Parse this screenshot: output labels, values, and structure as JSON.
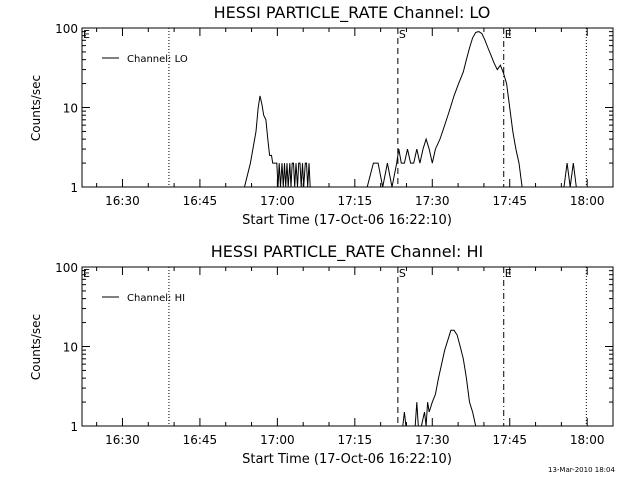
{
  "footer": {
    "timestamp": "13-Mar-2010 18:04"
  },
  "chart_data": [
    {
      "type": "line",
      "title": "HESSI PARTICLE_RATE Channel: LO",
      "xlabel": "Start Time (17-Oct-06 16:22:10)",
      "ylabel": "Counts/sec",
      "y_scale": "log",
      "ylim": [
        1,
        100
      ],
      "xlim": [
        16.3694,
        18.0833
      ],
      "x_ticks": [
        "16:30",
        "16:45",
        "17:00",
        "17:15",
        "17:30",
        "17:45",
        "18:00"
      ],
      "y_ticks": [
        "1",
        "10",
        "100"
      ],
      "legend": {
        "entries": [
          "Channel: LO"
        ],
        "placement": "top-left"
      },
      "markers": [
        {
          "x": 16.3694,
          "style": "dotted",
          "label": "E"
        },
        {
          "x": 16.65,
          "style": "dotted",
          "label": ""
        },
        {
          "x": 17.3889,
          "style": "dashed",
          "label": "S"
        },
        {
          "x": 17.7306,
          "style": "dash-dot",
          "label": "E"
        },
        {
          "x": 17.9972,
          "style": "dotted",
          "label": ""
        }
      ],
      "series": [
        {
          "name": "Channel: LO",
          "x": [
            16.894,
            16.913,
            16.931,
            16.938,
            16.944,
            16.95,
            16.956,
            16.963,
            16.969,
            16.975,
            16.981,
            16.985,
            16.99,
            16.994,
            16.998,
            17.002,
            17.006,
            17.01,
            17.015,
            17.019,
            17.023,
            17.027,
            17.031,
            17.035,
            17.04,
            17.044,
            17.048,
            17.052,
            17.056,
            17.06,
            17.065,
            17.069,
            17.073,
            17.077,
            17.081,
            17.085,
            17.09,
            17.094,
            17.098,
            17.102,
            17.106,
            17.29,
            17.31,
            17.325,
            17.34,
            17.355,
            17.37,
            17.385,
            17.392,
            17.4,
            17.41,
            17.42,
            17.43,
            17.44,
            17.45,
            17.46,
            17.47,
            17.48,
            17.49,
            17.5,
            17.51,
            17.525,
            17.54,
            17.555,
            17.57,
            17.585,
            17.6,
            17.61,
            17.62,
            17.63,
            17.64,
            17.65,
            17.66,
            17.67,
            17.68,
            17.69,
            17.7,
            17.71,
            17.72,
            17.73,
            17.74,
            17.75,
            17.76,
            17.77,
            17.78,
            17.79,
            17.8,
            17.925,
            17.935,
            17.945,
            17.955,
            17.965
          ],
          "y": [
            1,
            2,
            5,
            10,
            14,
            11,
            8,
            7,
            4,
            2.5,
            2.5,
            2,
            2,
            2,
            2,
            1,
            2,
            1,
            2,
            1,
            2,
            1,
            2,
            1,
            2,
            1,
            2,
            2,
            1,
            2,
            1,
            2,
            2,
            1,
            2,
            1,
            2,
            2,
            1,
            2,
            1,
            1,
            2,
            2,
            1,
            2,
            1,
            2,
            3,
            2,
            2,
            3,
            2,
            2,
            3,
            2,
            3,
            4,
            3,
            2,
            3,
            4,
            6,
            9,
            14,
            20,
            28,
            40,
            56,
            75,
            88,
            90,
            85,
            70,
            56,
            45,
            36,
            30,
            34,
            27,
            20,
            10,
            5,
            3,
            2,
            1,
            1,
            1,
            2,
            1,
            2,
            1
          ]
        }
      ]
    },
    {
      "type": "line",
      "title": "HESSI PARTICLE_RATE Channel: HI",
      "xlabel": "Start Time (17-Oct-06 16:22:10)",
      "ylabel": "Counts/sec",
      "y_scale": "log",
      "ylim": [
        1,
        100
      ],
      "xlim": [
        16.3694,
        18.0833
      ],
      "x_ticks": [
        "16:30",
        "16:45",
        "17:00",
        "17:15",
        "17:30",
        "17:45",
        "18:00"
      ],
      "y_ticks": [
        "1",
        "10",
        "100"
      ],
      "legend": {
        "entries": [
          "Channel: HI"
        ],
        "placement": "top-left"
      },
      "markers": [
        {
          "x": 16.3694,
          "style": "dotted",
          "label": "E"
        },
        {
          "x": 16.65,
          "style": "dotted",
          "label": ""
        },
        {
          "x": 17.3889,
          "style": "dashed",
          "label": "S"
        },
        {
          "x": 17.7306,
          "style": "dash-dot",
          "label": "E"
        },
        {
          "x": 17.9972,
          "style": "dotted",
          "label": ""
        }
      ],
      "series": [
        {
          "name": "Channel: HI",
          "x": [
            17.405,
            17.41,
            17.415,
            17.445,
            17.45,
            17.455,
            17.465,
            17.475,
            17.48,
            17.485,
            17.49,
            17.5,
            17.51,
            17.52,
            17.53,
            17.54,
            17.55,
            17.56,
            17.57,
            17.58,
            17.59,
            17.6,
            17.61,
            17.62,
            17.63,
            17.64
          ],
          "y": [
            1,
            1.5,
            1,
            1,
            2,
            1,
            1,
            1.5,
            1,
            2,
            1.5,
            2,
            2.5,
            4,
            6,
            9,
            12,
            16,
            16,
            14,
            10,
            7,
            4,
            2,
            1.5,
            1
          ]
        }
      ]
    }
  ]
}
